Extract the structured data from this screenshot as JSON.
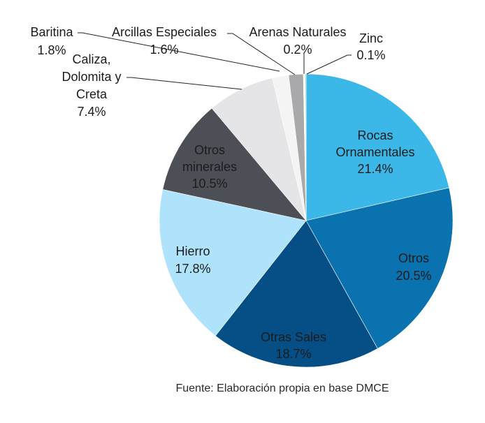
{
  "chart_data": {
    "type": "pie",
    "title": "",
    "start_angle_deg": 0,
    "direction": "clockwise",
    "slices": [
      {
        "label": "Rocas Ornamentales",
        "value": 21.4,
        "display": "21.4%",
        "color": "#3bb7e8"
      },
      {
        "label": "Otros",
        "value": 20.5,
        "display": "20.5%",
        "color": "#0a72ae"
      },
      {
        "label": "Otras Sales",
        "value": 18.7,
        "display": "18.7%",
        "color": "#064f86"
      },
      {
        "label": "Hierro",
        "value": 17.8,
        "display": "17.8%",
        "color": "#aee3fb"
      },
      {
        "label": "Otros minerales",
        "value": 10.5,
        "display": "10.5%",
        "color": "#4d4f57"
      },
      {
        "label": "Caliza, Dolomita y Creta",
        "value": 7.4,
        "display": "7.4%",
        "color": "#e5e5e7"
      },
      {
        "label": "Baritina",
        "value": 1.8,
        "display": "1.8%",
        "color": "#f4f4f5"
      },
      {
        "label": "Arcillas Especiales",
        "value": 1.6,
        "display": "1.6%",
        "color": "#a9a9ab"
      },
      {
        "label": "Arenas Naturales",
        "value": 0.2,
        "display": "0.2%",
        "color": "#ffffff"
      },
      {
        "label": "Zinc",
        "value": 0.1,
        "display": "0.1%",
        "color": "#8fd18a"
      }
    ]
  },
  "labels": {
    "rocas": {
      "l1": "Rocas",
      "l2": "Ornamentales",
      "pct": "21.4%"
    },
    "otros": {
      "l1": "Otros",
      "pct": "20.5%"
    },
    "otras_sales": {
      "l1": "Otras Sales",
      "pct": "18.7%"
    },
    "hierro": {
      "l1": "Hierro",
      "pct": "17.8%"
    },
    "otros_minerales": {
      "l1": "Otros",
      "l2": "minerales",
      "pct": "10.5%"
    },
    "caliza": {
      "l1": "Caliza,",
      "l2": "Dolomita y",
      "l3": "Creta",
      "pct": "7.4%"
    },
    "baritina": {
      "l1": "Baritina",
      "pct": "1.8%"
    },
    "arcillas": {
      "l1": "Arcillas Especiales",
      "pct": "1.6%"
    },
    "arenas": {
      "l1": "Arenas Naturales",
      "pct": "0.2%"
    },
    "zinc": {
      "l1": "Zinc",
      "pct": "0.1%"
    }
  },
  "source": "Fuente: Elaboración propia en base DMCE"
}
